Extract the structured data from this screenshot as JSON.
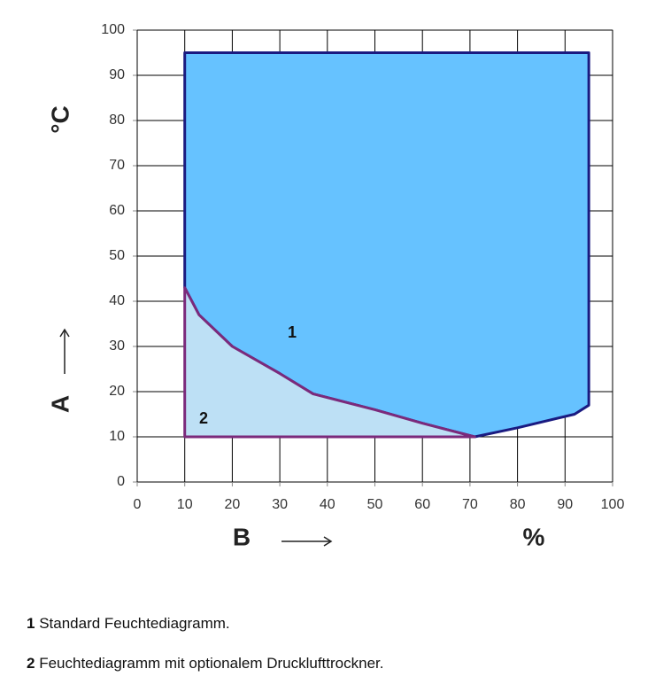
{
  "chart_data": {
    "type": "polygon",
    "x_label": "B",
    "x_unit": "%",
    "y_label": "A",
    "y_unit": "°C",
    "xlim": [
      0,
      100
    ],
    "xticks": [
      0,
      10,
      20,
      30,
      40,
      50,
      60,
      70,
      80,
      90,
      100
    ],
    "ylim": [
      0,
      100
    ],
    "yticks": [
      0,
      10,
      20,
      30,
      40,
      50,
      60,
      70,
      80,
      90,
      100
    ],
    "grid": true,
    "series": [
      {
        "name": "1",
        "description": "Standard Feuchtediagramm.",
        "color": "#66c2ff",
        "edge_color": "#1a1a80",
        "x": [
          10,
          95,
          95,
          92,
          80,
          71,
          60,
          50,
          37,
          30,
          20,
          13,
          10
        ],
        "y": [
          95,
          95,
          17,
          15,
          12,
          10,
          13,
          16,
          19.5,
          24,
          30,
          37,
          43
        ]
      },
      {
        "name": "2",
        "description": "Feuchtediagramm mit optionalem Drucklufttrockner.",
        "color": "#bde0f5",
        "edge_color": "#7b2a7b",
        "x": [
          10,
          13,
          20,
          30,
          37,
          50,
          60,
          71,
          10
        ],
        "y": [
          43,
          37,
          30,
          24,
          19.5,
          16,
          13,
          10,
          10
        ]
      }
    ]
  }
}
